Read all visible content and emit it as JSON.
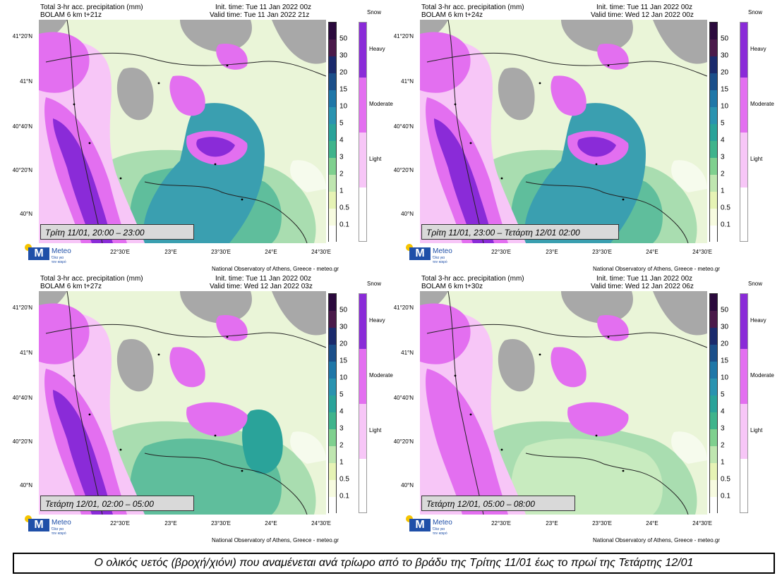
{
  "panels": [
    {
      "title": "Total 3-hr acc. precipitation (mm)",
      "model": "BOLAM 6 km t+21z",
      "init": "Init. time: Tue 11 Jan 2022 00z",
      "valid": "Valid time: Tue 11 Jan 2022 21z",
      "caption": "Τρίτη 11/01, 20:00 – 23:00",
      "intensity": 3
    },
    {
      "title": "Total 3-hr acc. precipitation (mm)",
      "model": "BOLAM 6 km t+24z",
      "init": "Init. time: Tue 11 Jan 2022 00z",
      "valid": "Valid time: Wed 12 Jan 2022 00z",
      "caption": "Τρίτη 11/01, 23:00 – Τετάρτη 12/01 02:00",
      "intensity": 3
    },
    {
      "title": "Total 3-hr acc. precipitation (mm)",
      "model": "BOLAM 6 km t+27z",
      "init": "Init. time: Tue 11 Jan 2022 00z",
      "valid": "Valid time: Wed 12 Jan 2022 03z",
      "caption": "Τετάρτη 12/01, 02:00 – 05:00",
      "intensity": 2
    },
    {
      "title": "Total 3-hr acc. precipitation (mm)",
      "model": "BOLAM 6 km t+30z",
      "init": "Init. time: Tue 11 Jan 2022 00z",
      "valid": "Valid time: Wed 12 Jan 2022 06z",
      "caption": "Τετάρτη 12/01, 05:00 – 08:00",
      "intensity": 1
    }
  ],
  "lat_labels": [
    "41°20'N",
    "41°N",
    "40°40'N",
    "40°20'N",
    "40°N"
  ],
  "lon_labels": [
    "22°30'E",
    "23°E",
    "23°30'E",
    "24°E",
    "24°30'E"
  ],
  "rain_scale": [
    "50",
    "30",
    "20",
    "15",
    "10",
    "5",
    "4",
    "3",
    "2",
    "1",
    "0.5",
    "0.1"
  ],
  "rain_colors": [
    "#2b0a3d",
    "#4a1a4a",
    "#1a2a6c",
    "#1b4f8a",
    "#1f77a8",
    "#2a93b0",
    "#2aa39a",
    "#3fb48c",
    "#7fd08f",
    "#bfe6b0",
    "#e6f3b5",
    "#f7fbe0"
  ],
  "snow_title": "Snow",
  "snow_scale": [
    "Heavy",
    "Moderate",
    "Light"
  ],
  "snow_colors": [
    "#8a2bd8",
    "#e36ff0",
    "#f7c6f7"
  ],
  "credit": "National Observatory of Athens, Greece - meteo.gr",
  "logo": {
    "name": "Meteo",
    "tagline_1": "Όλα για",
    "tagline_2": "τον καιρό"
  },
  "bottom_caption": "Ο ολικός υετός (βροχή/χιόνι) που αναμένεται ανά τρίωρο από το βράδυ της Τρίτης 11/01 έως το πρωί της Τετάρτης 12/01"
}
